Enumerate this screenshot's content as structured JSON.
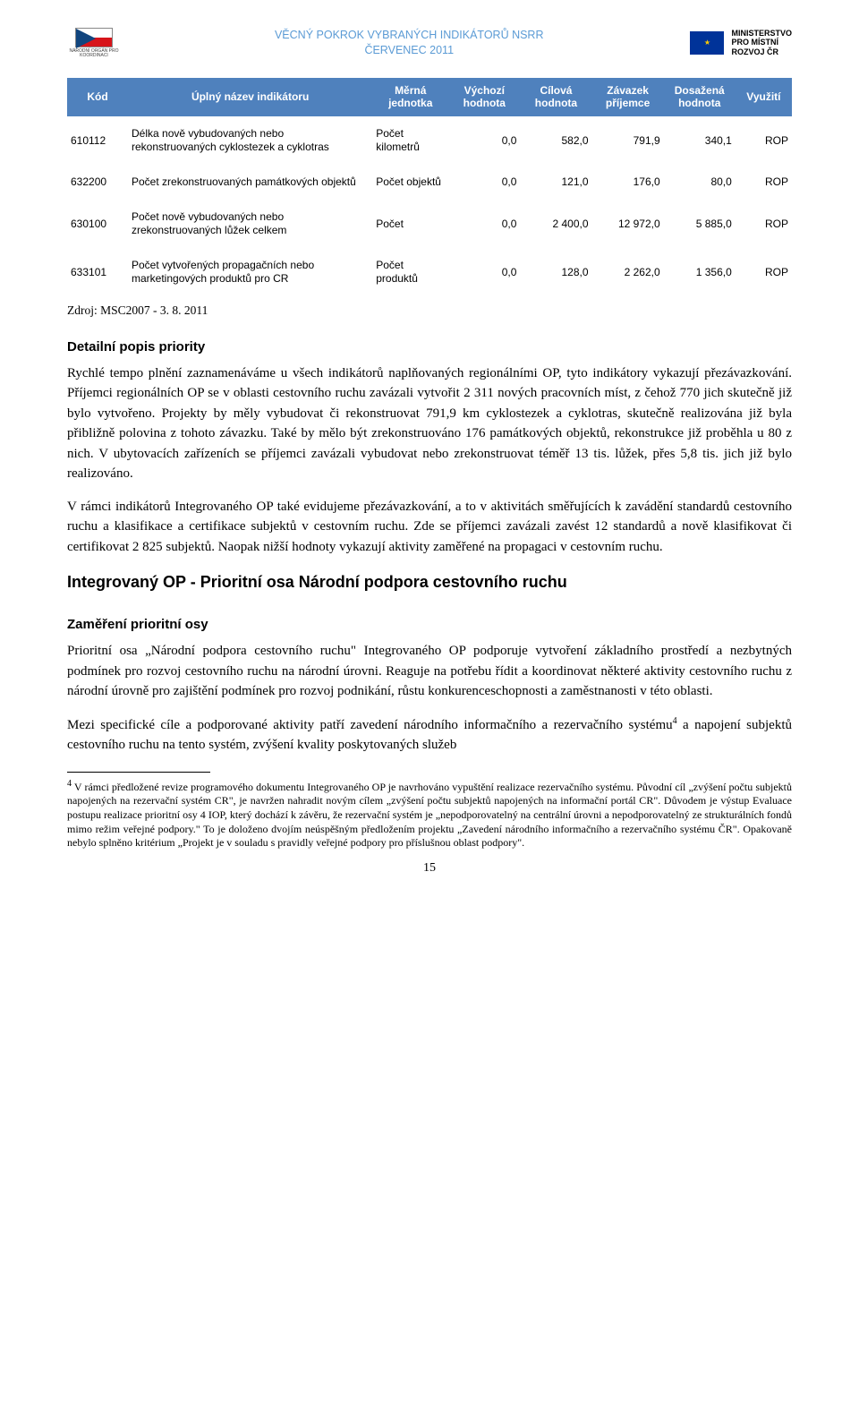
{
  "header": {
    "title_line1": "VĚCNÝ POKROK VYBRANÝCH INDIKÁTORŮ NSRR",
    "title_line2": "ČERVENEC 2011",
    "left_logo_label": "NÁRODNÍ ORGÁN PRO KOORDINACI",
    "ministry_line1": "MINISTERSTVO",
    "ministry_line2": "PRO MÍSTNÍ",
    "ministry_line3": "ROZVOJ ČR"
  },
  "table": {
    "header_bg": "#4f81bd",
    "header_fg": "#ffffff",
    "columns": [
      "Kód",
      "Úplný název indikátoru",
      "Měrná jednotka",
      "Výchozí hodnota",
      "Cílová hodnota",
      "Závazek příjemce",
      "Dosažená hodnota",
      "Využití"
    ],
    "rows": [
      {
        "code": "610112",
        "name": "Délka nově vybudovaných nebo rekonstruovaných cyklostezek a cyklotras",
        "unit": "Počet kilometrů",
        "v": [
          "0,0",
          "582,0",
          "791,9",
          "340,1",
          "ROP"
        ]
      },
      {
        "code": "632200",
        "name": "Počet zrekonstruovaných památkových objektů",
        "unit": "Počet objektů",
        "v": [
          "0,0",
          "121,0",
          "176,0",
          "80,0",
          "ROP"
        ]
      },
      {
        "code": "630100",
        "name": "Počet nově vybudovaných nebo zrekonstruovaných lůžek celkem",
        "unit": "Počet",
        "v": [
          "0,0",
          "2 400,0",
          "12 972,0",
          "5 885,0",
          "ROP"
        ]
      },
      {
        "code": "633101",
        "name": "Počet vytvořených propagačních nebo marketingových produktů pro CR",
        "unit": "Počet produktů",
        "v": [
          "0,0",
          "128,0",
          "2 262,0",
          "1 356,0",
          "ROP"
        ]
      }
    ],
    "source": "Zdroj: MSC2007 - 3. 8. 2011"
  },
  "sections": {
    "detail_heading": "Detailní popis priority",
    "detail_p1": "Rychlé tempo plnění zaznamenáváme u všech indikátorů naplňovaných regionálními OP, tyto indikátory vykazují přezávazkování. Příjemci regionálních OP se v oblasti cestovního ruchu zavázali vytvořit 2 311 nových pracovních míst, z čehož 770 jich skutečně již bylo vytvořeno. Projekty by měly vybudovat či rekonstruovat 791,9 km cyklostezek a cyklotras, skutečně realizována již byla přibližně polovina z tohoto závazku. Také by mělo být zrekonstruováno 176 památkových objektů, rekonstrukce již proběhla u 80 z nich. V ubytovacích zařízeních se příjemci zavázali vybudovat nebo zrekonstruovat téměř 13 tis. lůžek, přes 5,8 tis. jich již bylo realizováno.",
    "detail_p2": "V rámci indikátorů Integrovaného OP také evidujeme přezávazkování, a to v aktivitách směřujících k zavádění standardů cestovního ruchu a klasifikace a certifikace subjektů v cestovním ruchu. Zde se příjemci zavázali zavést 12 standardů a nově klasifikovat či certifikovat 2 825 subjektů. Naopak nižší hodnoty vykazují aktivity zaměřené na propagaci v cestovním ruchu.",
    "big_heading": "Integrovaný OP - Prioritní osa Národní podpora cestovního ruchu",
    "focus_heading": "Zaměření prioritní osy",
    "focus_p1": "Prioritní osa „Národní podpora cestovního ruchu\" Integrovaného OP podporuje vytvoření základního prostředí a nezbytných podmínek pro rozvoj cestovního ruchu na národní úrovni. Reaguje na potřebu řídit a koordinovat některé aktivity cestovního ruchu z národní úrovně pro zajištění podmínek pro rozvoj podnikání, růstu konkurenceschopnosti a zaměstnanosti v této oblasti.",
    "focus_p2_pre": "Mezi specifické cíle a podporované aktivity patří zavedení národního informačního a rezervačního systému",
    "focus_p2_post": " a napojení subjektů cestovního ruchu na tento systém, zvýšení kvality poskytovaných služeb"
  },
  "footnote": {
    "marker": "4",
    "text": "V rámci předložené revize programového dokumentu Integrovaného OP je navrhováno vypuštění realizace rezervačního systému. Původní cíl „zvýšení počtu subjektů napojených na rezervační systém CR\", je navržen nahradit novým cílem „zvýšení počtu subjektů napojených na informační portál CR\". Důvodem je výstup Evaluace postupu realizace prioritní osy 4 IOP, který dochází k závěru, že rezervační systém je „nepodporovatelný na centrální úrovni a nepodporovatelný ze strukturálních fondů mimo režim veřejné podpory.\" To je doloženo dvojím neúspěšným předložením projektu „Zavedení národního informačního a rezervačního systému ČR\". Opakovaně nebylo splněno kritérium „Projekt je v souladu s pravidly veřejné podpory pro příslušnou oblast podpory\"."
  },
  "page_number": "15"
}
